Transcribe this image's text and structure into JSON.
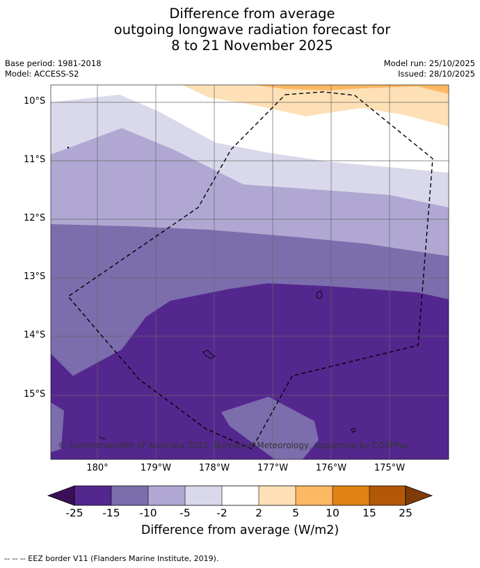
{
  "title": {
    "line1": "Difference from average",
    "line2": "outgoing longwave radiation forecast for",
    "line3": "8 to 21 November 2025"
  },
  "meta": {
    "base_period": "Base period: 1981-2018",
    "model": "Model: ACCESS-S2",
    "model_run": "Model run: 25/10/2025",
    "issued": "Issued: 28/10/2025"
  },
  "axes": {
    "lat_labels": [
      "10°S",
      "11°S",
      "12°S",
      "13°S",
      "14°S",
      "15°S"
    ],
    "lon_labels": [
      "180°",
      "179°W",
      "178°W",
      "177°W",
      "176°W",
      "175°W"
    ]
  },
  "copyright": "© Commonwealth of Australia 2025, Bureau of Meteorology, supported by COSPPac",
  "colorbar": {
    "labels": [
      "-25",
      "-15",
      "-10",
      "-5",
      "-2",
      "2",
      "5",
      "10",
      "15",
      "25"
    ],
    "colors": [
      "#3b0f58",
      "#54278f",
      "#7c6dad",
      "#b0a8d3",
      "#d9d9eb",
      "#ffffff",
      "#fee0b6",
      "#fdb863",
      "#e08214",
      "#b35806",
      "#7f3b08"
    ],
    "title": "Difference from average (W/m2)"
  },
  "footer": "--  --  -- EEZ border V11 (Flanders Marine Institute, 2019)."
}
